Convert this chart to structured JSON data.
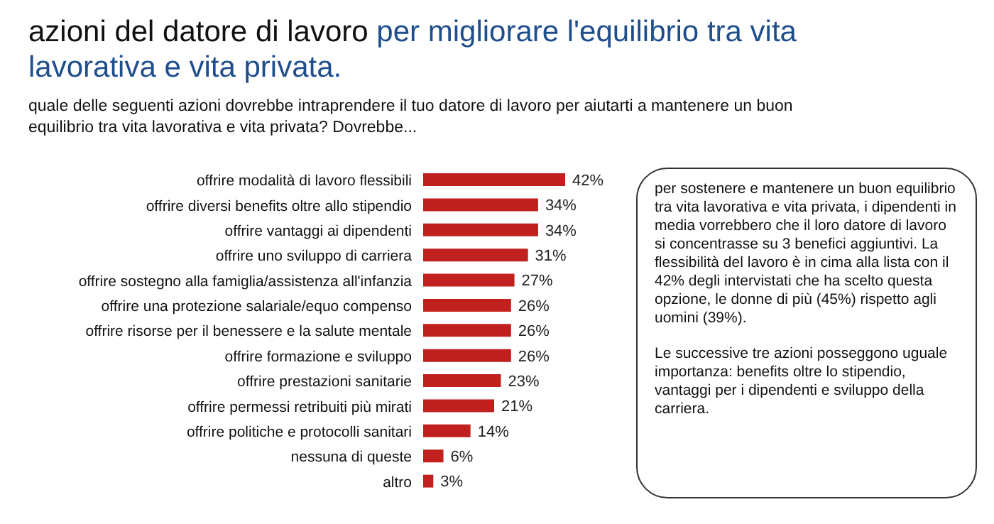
{
  "chart_data": {
    "type": "bar",
    "orientation": "horizontal",
    "title": "azioni del datore di lavoro per migliorare l'equilibrio tra vita lavorativa e vita privata.",
    "subtitle": "quale delle seguenti azioni dovrebbe intraprendere il tuo datore di lavoro per aiutarti a mantenere un buon equilibrio tra vita lavorativa e vita privata? Dovrebbe...",
    "categories": [
      "offrire modalità di lavoro flessibili",
      "offrire diversi benefits oltre allo stipendio",
      "offrire vantaggi ai dipendenti",
      "offrire uno sviluppo di carriera",
      "offrire sostegno alla famiglia/assistenza all'infanzia",
      "offrire una protezione salariale/equo compenso",
      "offrire risorse per il benessere e la salute mentale",
      "offrire formazione e sviluppo",
      "offrire prestazioni sanitarie",
      "offrire permessi retribuiti più mirati",
      "offrire politiche e protocolli sanitari",
      "nessuna di queste",
      "altro"
    ],
    "values": [
      42,
      34,
      34,
      31,
      27,
      26,
      26,
      26,
      23,
      21,
      14,
      6,
      3
    ],
    "value_labels": [
      "42%",
      "34%",
      "34%",
      "31%",
      "27%",
      "26%",
      "26%",
      "26%",
      "23%",
      "21%",
      "14%",
      "6%",
      "3%"
    ],
    "color": "#c0201e",
    "legend": false,
    "annotations": [
      "per sostenere e mantenere un buon equilibrio tra vita lavorativa e vita privata, i dipendenti in media vorrebbero che il loro datore di lavoro si concentrasse su 3 benefici aggiuntivi. La flessibilità del lavoro è in cima alla lista con il 42% degli intervistati che ha scelto questa opzione, le donne di più (45%) rispetto agli uomini (39%).",
      "Le successive tre azioni posseggono uguale importanza: benefits oltre lo stipendio, vantaggi per i dipendenti e sviluppo della carriera."
    ]
  }
}
